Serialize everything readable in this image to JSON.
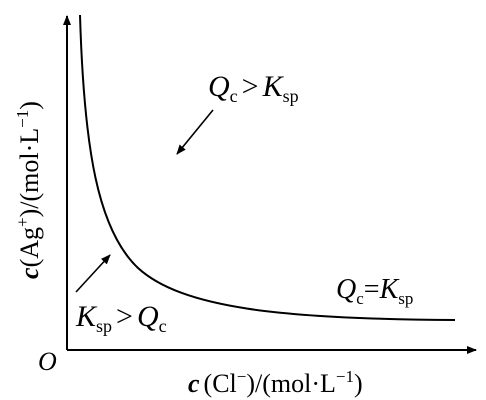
{
  "diagram": {
    "x_axis_label": {
      "var": "c",
      "open": "(Cl",
      "sup": "−",
      "close": ")/(mol·L",
      "unit_sup": "−1",
      "end": ")"
    },
    "y_axis_label": {
      "var": "c",
      "open": "(Ag",
      "sup": "+",
      "close": ")/(mol·L",
      "unit_sup": "−1",
      "end": ")"
    },
    "origin": "O",
    "region_above": {
      "Q": "Q",
      "Q_sub": "c",
      "rel": ">",
      "K": "K",
      "K_sub": "sp"
    },
    "region_below": {
      "K": "K",
      "K_sub": "sp",
      "rel": ">",
      "Q": "Q",
      "Q_sub": "c"
    },
    "curve_label": {
      "Q": "Q",
      "Q_sub": "c",
      "rel": "=",
      "K": "K",
      "K_sub": "sp"
    }
  }
}
